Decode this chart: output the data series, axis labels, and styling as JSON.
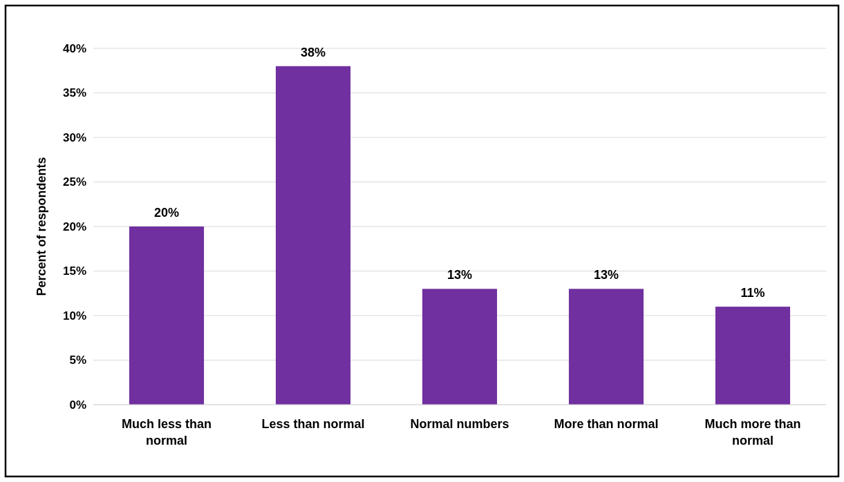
{
  "chart_data": {
    "type": "bar",
    "ylabel": "Percent of respondents",
    "categories": [
      "Much less than normal",
      "Less than normal",
      "Normal numbers",
      "More than normal",
      "Much more than normal"
    ],
    "values": [
      20,
      38,
      13,
      13,
      11
    ],
    "color": "#7030a0",
    "value_labels": [
      "20%",
      "38%",
      "13%",
      "13%",
      "11%"
    ],
    "ylim": [
      0,
      40
    ],
    "yticks": [
      {
        "value": 0,
        "label": "0%"
      },
      {
        "value": 5,
        "label": "5%"
      },
      {
        "value": 10,
        "label": "10%"
      },
      {
        "value": 15,
        "label": "15%"
      },
      {
        "value": 20,
        "label": "20%"
      },
      {
        "value": 25,
        "label": "25%"
      },
      {
        "value": 30,
        "label": "30%"
      },
      {
        "value": 35,
        "label": "35%"
      },
      {
        "value": 40,
        "label": "40%"
      }
    ],
    "grid": "y"
  }
}
